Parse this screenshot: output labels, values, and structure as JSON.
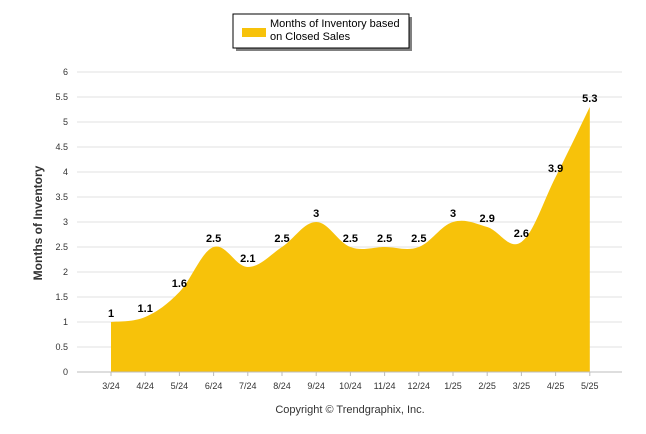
{
  "chart_data": {
    "type": "area",
    "categories": [
      "3/24",
      "4/24",
      "5/24",
      "6/24",
      "7/24",
      "8/24",
      "9/24",
      "10/24",
      "11/24",
      "12/24",
      "1/25",
      "2/25",
      "3/25",
      "4/25",
      "5/25"
    ],
    "series": [
      {
        "name": "Months of Inventory based on Closed Sales",
        "values": [
          1,
          1.1,
          1.6,
          2.5,
          2.1,
          2.5,
          3,
          2.5,
          2.5,
          2.5,
          3,
          2.9,
          2.6,
          3.9,
          5.3
        ],
        "data_labels": [
          "1",
          "1.1",
          "1.6",
          "2.5",
          "2.1",
          "2.5",
          "3",
          "2.5",
          "2.5",
          "2.5",
          "3",
          "2.9",
          "2.6",
          "3.9",
          "5.3"
        ],
        "color": "#f7c20a"
      }
    ],
    "ylabel": "Months of Inventory",
    "xlabel": "",
    "ylim": [
      0,
      6
    ],
    "yticks": [
      "0",
      "0.5",
      "1",
      "1.5",
      "2",
      "2.5",
      "3",
      "3.5",
      "4",
      "4.5",
      "5",
      "5.5",
      "6"
    ],
    "grid": true,
    "legend": {
      "position": "top-center",
      "lines": [
        "Months of Inventory based",
        "on Closed Sales"
      ]
    },
    "footer": "Copyright © Trendgraphix, Inc."
  }
}
